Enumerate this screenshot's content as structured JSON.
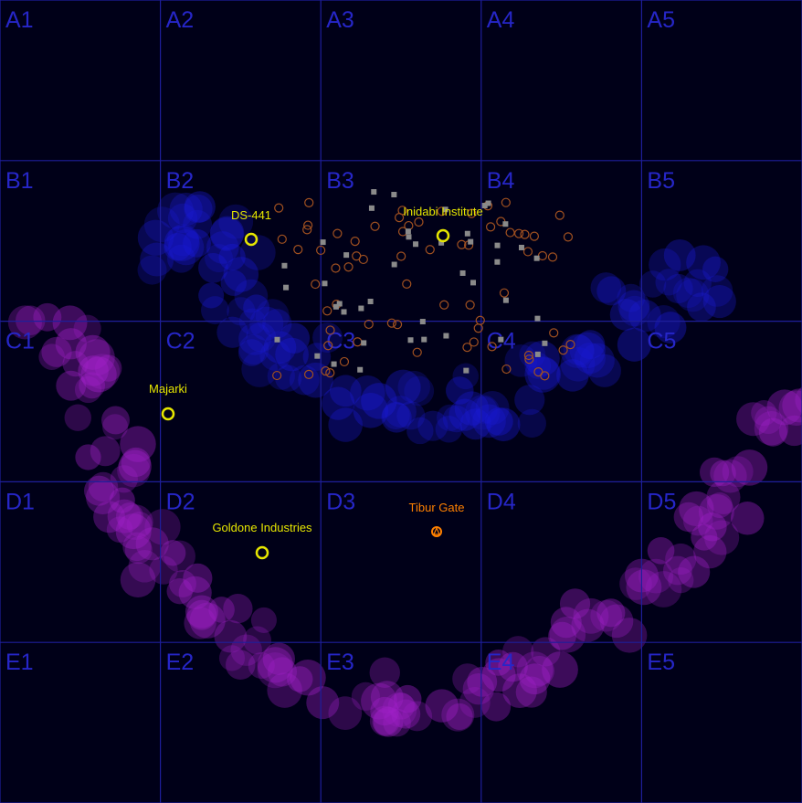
{
  "grid": {
    "rows": [
      "A",
      "B",
      "C",
      "D",
      "E"
    ],
    "cols": [
      "1",
      "2",
      "3",
      "4",
      "5"
    ],
    "cell_labels": [
      [
        "A1",
        "A2",
        "A3",
        "A4",
        "A5"
      ],
      [
        "B1",
        "B2",
        "B3",
        "B4",
        "B5"
      ],
      [
        "C1",
        "C2",
        "C3",
        "C4",
        "C5"
      ],
      [
        "D1",
        "D2",
        "D3",
        "D4",
        "D5"
      ],
      [
        "E1",
        "E2",
        "E3",
        "E4",
        "E5"
      ]
    ],
    "line_color": "#1e1e9a",
    "label_color": "#2626c8"
  },
  "colors": {
    "background": "#000018",
    "blue_cloud": "#1a1ad8",
    "purple_cloud": "#a020c8",
    "asteroid": "#a05020",
    "station": "#e6e600",
    "hostile": "#ff8000",
    "marker": "#8a8a8a"
  },
  "locations": [
    {
      "name": "DS-441",
      "type": "station"
    },
    {
      "name": "Inidabi Institute",
      "type": "station"
    },
    {
      "name": "Majarki",
      "type": "station"
    },
    {
      "name": "Goldone Industries",
      "type": "station"
    },
    {
      "name": "Tibur Gate",
      "type": "gate"
    }
  ]
}
